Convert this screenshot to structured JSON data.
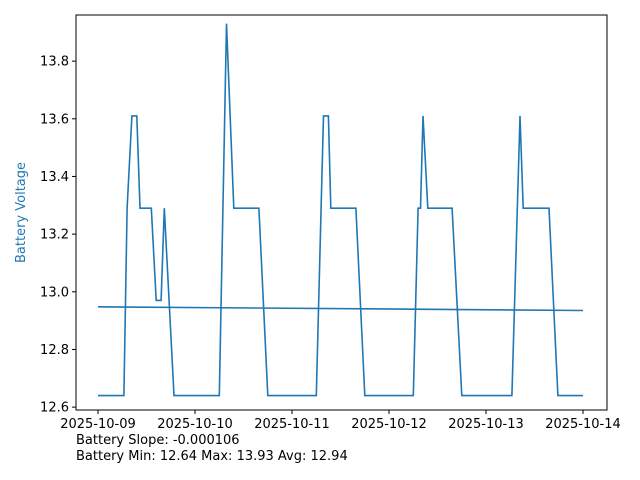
{
  "chart_data": {
    "type": "line",
    "ylabel": "Battery Voltage",
    "xlabel": "",
    "title": "",
    "x_range": [
      "2025-10-09T00:00",
      "2025-10-14T00:00"
    ],
    "ylim": [
      12.59,
      13.96
    ],
    "yticks": [
      12.6,
      12.8,
      13.0,
      13.2,
      13.4,
      13.6,
      13.8
    ],
    "xticks": [
      "2025-10-09",
      "2025-10-10",
      "2025-10-11",
      "2025-10-12",
      "2025-10-13",
      "2025-10-14"
    ],
    "grid": false,
    "colors": {
      "series": "#1f77b4",
      "ylabel": "#1f77b4"
    },
    "series": [
      {
        "values": [
          [
            "2025-10-09T00:00",
            12.64
          ],
          [
            "2025-10-09T06:24",
            12.64
          ],
          [
            "2025-10-09T07:12",
            13.29
          ],
          [
            "2025-10-09T08:24",
            13.61
          ],
          [
            "2025-10-09T09:36",
            13.61
          ],
          [
            "2025-10-09T10:24",
            13.29
          ],
          [
            "2025-10-09T13:12",
            13.29
          ],
          [
            "2025-10-09T14:24",
            12.97
          ],
          [
            "2025-10-09T15:36",
            12.97
          ],
          [
            "2025-10-09T16:24",
            13.29
          ],
          [
            "2025-10-09T18:48",
            12.64
          ],
          [
            "2025-10-10T06:00",
            12.64
          ],
          [
            "2025-10-10T07:48",
            13.93
          ],
          [
            "2025-10-10T09:36",
            13.29
          ],
          [
            "2025-10-10T15:48",
            13.29
          ],
          [
            "2025-10-10T18:00",
            12.64
          ],
          [
            "2025-10-11T06:00",
            12.64
          ],
          [
            "2025-10-11T07:12",
            13.29
          ],
          [
            "2025-10-11T07:48",
            13.61
          ],
          [
            "2025-10-11T09:00",
            13.61
          ],
          [
            "2025-10-11T09:36",
            13.29
          ],
          [
            "2025-10-11T15:48",
            13.29
          ],
          [
            "2025-10-11T18:00",
            12.64
          ],
          [
            "2025-10-12T06:00",
            12.64
          ],
          [
            "2025-10-12T07:12",
            13.29
          ],
          [
            "2025-10-12T07:48",
            13.29
          ],
          [
            "2025-10-12T08:24",
            13.61
          ],
          [
            "2025-10-12T09:36",
            13.29
          ],
          [
            "2025-10-12T15:36",
            13.29
          ],
          [
            "2025-10-12T18:00",
            12.64
          ],
          [
            "2025-10-13T06:24",
            12.64
          ],
          [
            "2025-10-13T08:24",
            13.61
          ],
          [
            "2025-10-13T09:12",
            13.29
          ],
          [
            "2025-10-13T15:36",
            13.29
          ],
          [
            "2025-10-13T17:48",
            12.64
          ],
          [
            "2025-10-14T00:00",
            12.64
          ]
        ]
      },
      {
        "values": [
          [
            "2025-10-09T00:00",
            12.948
          ],
          [
            "2025-10-14T00:00",
            12.935
          ]
        ]
      }
    ]
  },
  "stats": {
    "slope_line": "Battery Slope: -0.000106",
    "summary_line": "Battery Min: 12.64 Max: 13.93 Avg: 12.94"
  }
}
